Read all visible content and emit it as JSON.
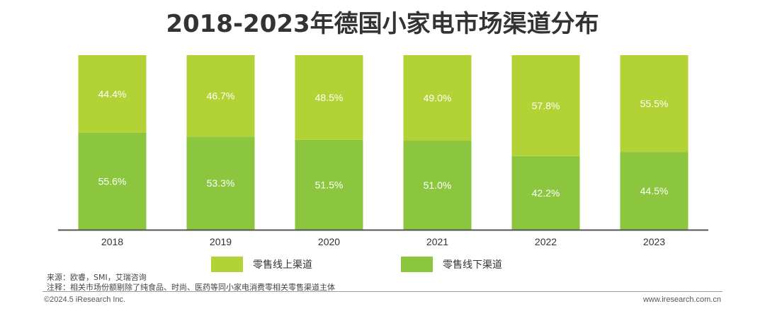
{
  "title": "2018-2023年德国小家电市场渠道分布",
  "colors": {
    "online": "#b2d235",
    "offline": "#8cc63f",
    "axis": "#555555"
  },
  "chart_data": {
    "type": "bar",
    "stacked": true,
    "categories": [
      "2018",
      "2019",
      "2020",
      "2021",
      "2022",
      "2023"
    ],
    "series": [
      {
        "name": "零售线上渠道",
        "values": [
          44.4,
          46.7,
          48.5,
          49.0,
          57.8,
          55.5
        ],
        "labels": [
          "44.4%",
          "46.7%",
          "48.5%",
          "49.0%",
          "57.8%",
          "55.5%"
        ]
      },
      {
        "name": "零售线下渠道",
        "values": [
          55.6,
          53.3,
          51.5,
          51.0,
          42.2,
          44.5
        ],
        "labels": [
          "55.6%",
          "53.3%",
          "51.5%",
          "51.0%",
          "42.2%",
          "44.5%"
        ]
      }
    ],
    "ylim": [
      0,
      100
    ],
    "legend": "bottom",
    "grid": false
  },
  "source": "来源：欧睿，SMI，艾瑞咨询",
  "note": "注释：相关市场份额剔除了纯食品、时尚、医药等同小家电消费零相关零售渠道主体",
  "copyright": "©2024.5 iResearch Inc.",
  "website": "www.iresearch.com.cn"
}
